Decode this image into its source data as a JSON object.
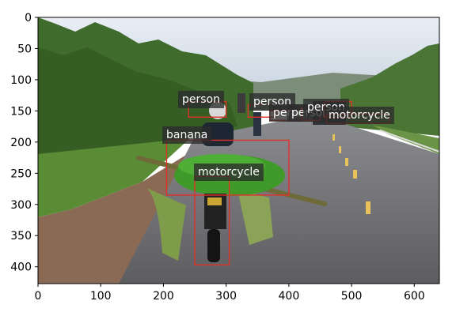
{
  "axes": {
    "x_ticks": [
      "0",
      "100",
      "200",
      "300",
      "400",
      "500",
      "600"
    ],
    "y_ticks": [
      "0",
      "50",
      "100",
      "150",
      "200",
      "250",
      "300",
      "350",
      "400"
    ]
  },
  "image": {
    "description_icon": "photo-road-motorcycle-bananas",
    "colors": {
      "sky": "#d9e3ee",
      "trees": "#3f6b2c",
      "road": "#6f6f73",
      "grass": "#5a8c35",
      "banana": "#3f9a2a",
      "box": "#e0302a",
      "label_bg": "#2b2b2b"
    }
  },
  "detections": [
    {
      "label": "person"
    },
    {
      "label": "person"
    },
    {
      "label": "person"
    },
    {
      "label": "person"
    },
    {
      "label": "person"
    },
    {
      "label": "motorcycle"
    },
    {
      "label": "banana"
    },
    {
      "label": "motorcycle"
    }
  ]
}
